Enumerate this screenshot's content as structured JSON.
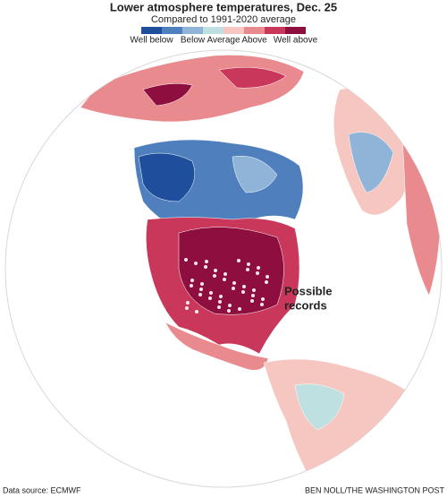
{
  "header": {
    "title": "Lower atmosphere temperatures, Dec. 25",
    "subtitle": "Compared to 1991-2020 average"
  },
  "legend": {
    "colors": [
      "#1f4e9c",
      "#4f80bd",
      "#8fb4d8",
      "#bfe0e0",
      "#f6c6c0",
      "#e98a8f",
      "#c9385a",
      "#8e0f3f"
    ],
    "labels": [
      "Well below",
      "Below",
      "Average",
      "Above",
      "Well above"
    ]
  },
  "annotation": {
    "lines": [
      "Possible",
      "records"
    ]
  },
  "footer": {
    "source": "Data source: ECMWF",
    "credit": "BEN NOLL/THE WASHINGTON POST"
  }
}
